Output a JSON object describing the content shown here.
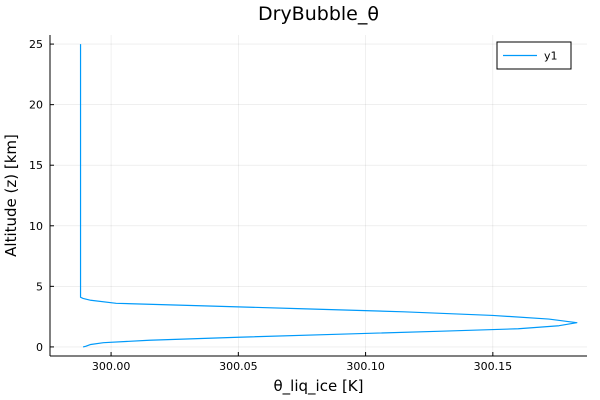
{
  "chart_data": {
    "type": "line",
    "title": "DryBubble_θ",
    "xlabel": "θ_liq_ice [K]",
    "ylabel": "Altitude (z) [km]",
    "xlim": [
      299.976,
      300.187
    ],
    "ylim": [
      -0.75,
      25.75
    ],
    "xticks": [
      300.0,
      300.05,
      300.1,
      300.15
    ],
    "xtick_labels": [
      "300.00",
      "300.05",
      "300.10",
      "300.15"
    ],
    "yticks": [
      0,
      5,
      10,
      15,
      20,
      25
    ],
    "ytick_labels": [
      "0",
      "5",
      "10",
      "15",
      "20",
      "25"
    ],
    "grid": true,
    "legend_position": "top-right",
    "series": [
      {
        "name": "y1",
        "color": "#009AFA",
        "points": [
          [
            299.988,
            25.0
          ],
          [
            299.988,
            20.0
          ],
          [
            299.988,
            15.0
          ],
          [
            299.988,
            10.0
          ],
          [
            299.988,
            5.0
          ],
          [
            299.988,
            4.1
          ],
          [
            299.989,
            4.0
          ],
          [
            299.992,
            3.85
          ],
          [
            300.002,
            3.6
          ],
          [
            300.035,
            3.4
          ],
          [
            300.075,
            3.15
          ],
          [
            300.115,
            2.9
          ],
          [
            300.15,
            2.6
          ],
          [
            300.172,
            2.3
          ],
          [
            300.183,
            2.0
          ],
          [
            300.176,
            1.75
          ],
          [
            300.16,
            1.5
          ],
          [
            300.13,
            1.3
          ],
          [
            300.09,
            1.05
          ],
          [
            300.05,
            0.8
          ],
          [
            300.015,
            0.55
          ],
          [
            299.997,
            0.35
          ],
          [
            299.992,
            0.2
          ],
          [
            299.99,
            0.05
          ],
          [
            299.989,
            0.0
          ]
        ]
      }
    ]
  }
}
